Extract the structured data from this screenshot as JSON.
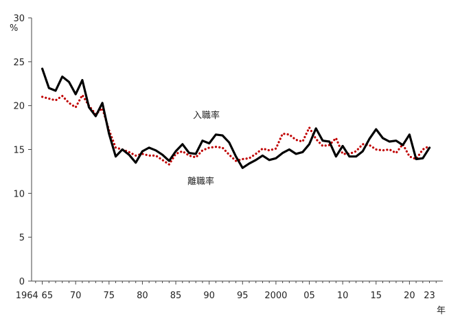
{
  "chart_data": {
    "type": "line",
    "title": "",
    "ylabel": "%",
    "xlabel": "年",
    "ylim": [
      0,
      30
    ],
    "yticks": [
      "0",
      "5",
      "10",
      "15",
      "20",
      "25",
      "30"
    ],
    "xtick_labels": [
      "1964",
      "65",
      "70",
      "75",
      "80",
      "85",
      "90",
      "95",
      "2000",
      "05",
      "10",
      "15",
      "20",
      "23"
    ],
    "xtick_years": [
      1964,
      1965,
      1970,
      1975,
      1980,
      1985,
      1990,
      1995,
      2000,
      2005,
      2010,
      2015,
      2020,
      2023
    ],
    "x": [
      1965,
      1966,
      1967,
      1968,
      1969,
      1970,
      1971,
      1972,
      1973,
      1974,
      1975,
      1976,
      1977,
      1978,
      1979,
      1980,
      1981,
      1982,
      1983,
      1984,
      1985,
      1986,
      1987,
      1988,
      1989,
      1990,
      1991,
      1992,
      1993,
      1994,
      1995,
      1996,
      1997,
      1998,
      1999,
      2000,
      2001,
      2002,
      2003,
      2004,
      2005,
      2006,
      2007,
      2008,
      2009,
      2010,
      2011,
      2012,
      2013,
      2014,
      2015,
      2016,
      2017,
      2018,
      2019,
      2020,
      2021,
      2022,
      2023
    ],
    "grid": false,
    "series": [
      {
        "name": "入職率",
        "color": "#000000",
        "style": "solid",
        "values": [
          24.2,
          22.0,
          21.7,
          23.3,
          22.7,
          21.3,
          22.9,
          19.8,
          18.8,
          20.3,
          16.8,
          14.2,
          15.0,
          14.4,
          13.5,
          14.8,
          15.2,
          14.9,
          14.4,
          13.7,
          14.8,
          15.6,
          14.6,
          14.5,
          16.0,
          15.7,
          16.7,
          16.6,
          15.8,
          14.2,
          12.9,
          13.4,
          13.8,
          14.3,
          13.8,
          14.0,
          14.6,
          15.0,
          14.5,
          14.7,
          15.6,
          17.4,
          16.0,
          15.9,
          14.2,
          15.4,
          14.2,
          14.2,
          14.8,
          16.2,
          17.3,
          16.3,
          15.9,
          16.0,
          15.5,
          16.7,
          13.9,
          14.0,
          15.2
        ]
      },
      {
        "name": "離職率",
        "color": "#c00000",
        "style": "dotted",
        "values": [
          21.0,
          20.8,
          20.6,
          21.1,
          20.3,
          19.8,
          21.2,
          20.0,
          19.0,
          19.7,
          17.2,
          15.2,
          15.0,
          14.7,
          14.3,
          14.5,
          14.3,
          14.3,
          13.8,
          13.3,
          14.5,
          14.8,
          14.3,
          14.1,
          14.9,
          15.2,
          15.3,
          15.2,
          14.4,
          13.7,
          13.9,
          14.0,
          14.5,
          15.1,
          14.9,
          15.1,
          16.8,
          16.7,
          16.1,
          15.9,
          17.5,
          16.2,
          15.4,
          15.5,
          16.3,
          14.5,
          14.5,
          14.8,
          15.6,
          15.5,
          15.0,
          14.9,
          15.0,
          14.6,
          15.6,
          14.2,
          13.9,
          15.0,
          15.4
        ]
      }
    ]
  }
}
